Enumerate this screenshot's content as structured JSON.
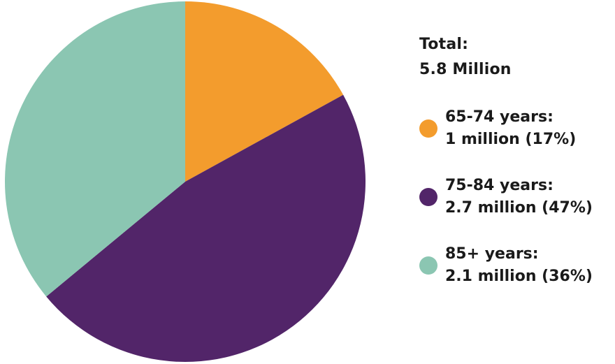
{
  "chart_data": {
    "type": "pie",
    "title": "",
    "total_label": "Total:",
    "total_value": "5.8 Million",
    "start_angle_deg": 0,
    "direction": "clockwise",
    "categories": [
      "65-74 years",
      "75-84 years",
      "85+ years"
    ],
    "values": [
      1.0,
      2.7,
      2.1
    ],
    "percentages": [
      17,
      47,
      36
    ],
    "units": "million",
    "colors": [
      "#f39c2d",
      "#522569",
      "#8bc6b2"
    ],
    "legend_position": "right"
  },
  "legend": {
    "total_line1": "Total:",
    "total_line2": "5.8 Million",
    "items": [
      {
        "label": "65-74 years:",
        "value": "1 million (17%)",
        "color": "#f39c2d"
      },
      {
        "label": "75-84 years:",
        "value": "2.7 million (47%)",
        "color": "#522569"
      },
      {
        "label": "85+ years:",
        "value": "2.1 million (36%)",
        "color": "#8bc6b2"
      }
    ]
  }
}
